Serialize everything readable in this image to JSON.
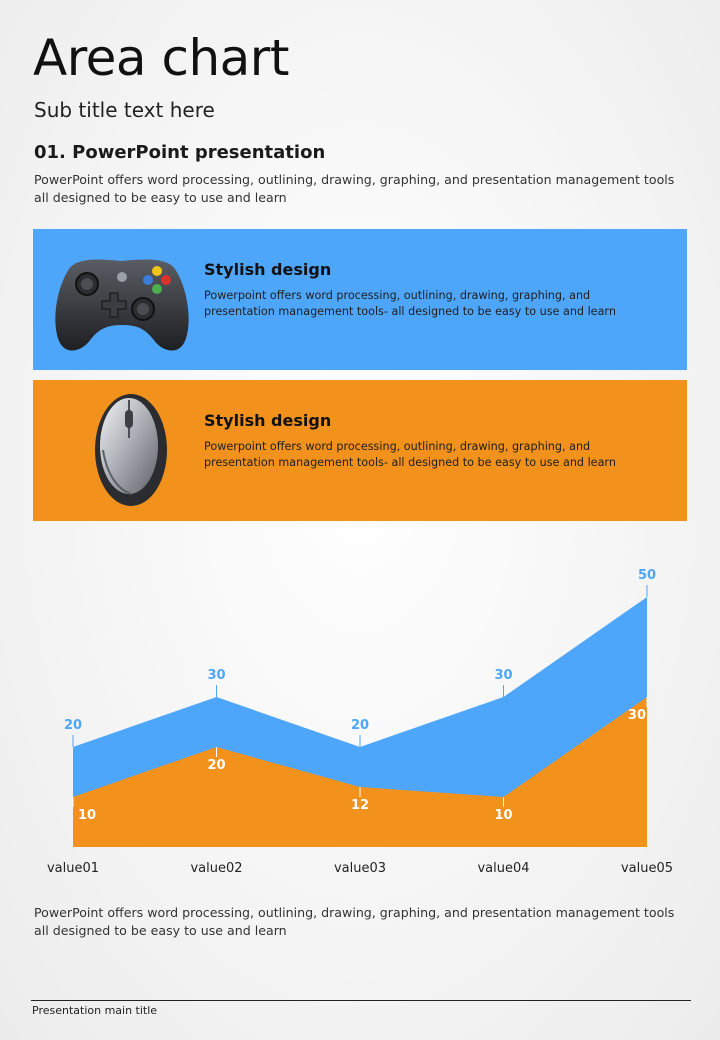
{
  "page": {
    "title": "Area chart",
    "subtitle": "Sub title text here",
    "section_heading": "01. PowerPoint presentation",
    "intro_text": "PowerPoint offers word processing, outlining, drawing, graphing, and presentation management tools all designed to be easy to use and learn",
    "bottom_text": "PowerPoint offers word processing, outlining, drawing, graphing, and presentation management tools all designed to be easy to use and learn",
    "footer": "Presentation main title"
  },
  "banners": [
    {
      "icon": "gamepad-icon",
      "title": "Stylish design",
      "text": "Powerpoint offers word processing, outlining, drawing, graphing, and presentation management tools- all designed to be easy to use and learn",
      "color": "#4ea6fb"
    },
    {
      "icon": "mouse-icon",
      "title": "Stylish design",
      "text": "Powerpoint offers word processing, outlining, drawing, graphing, and presentation management tools- all designed to be easy to use and learn",
      "color": "#f2911b"
    }
  ],
  "chart_data": {
    "type": "area",
    "categories": [
      "value01",
      "value02",
      "value03",
      "value04",
      "value05"
    ],
    "series": [
      {
        "values": [
          20,
          30,
          20,
          30,
          50
        ],
        "color": "#4ea6fb"
      },
      {
        "values": [
          10,
          20,
          12,
          10,
          30
        ],
        "color": "#f2911b"
      }
    ],
    "ylim": [
      0,
      50
    ],
    "grid": false,
    "legend": "none"
  }
}
